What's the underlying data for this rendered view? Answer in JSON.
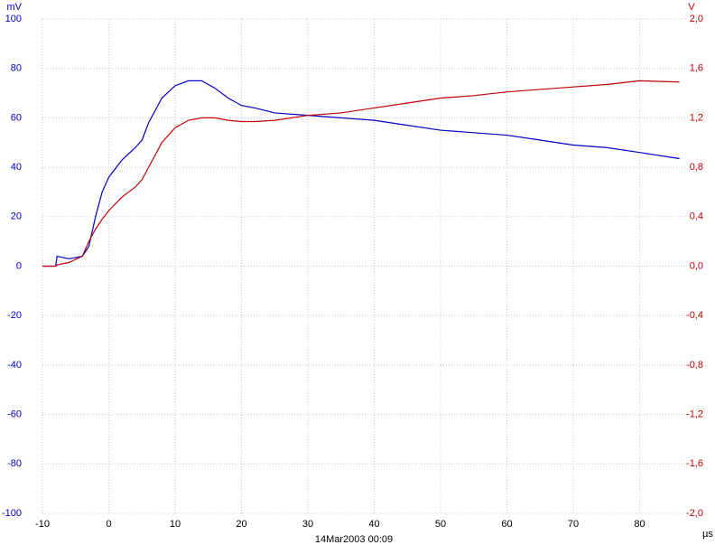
{
  "chart_data": {
    "type": "line",
    "y_label": "mV",
    "y2_label": "V",
    "x_label": "µs",
    "annotation": "14Mar2003 00:09",
    "x": [
      -10,
      -8,
      -7.8,
      -6,
      -4,
      -3,
      -2,
      -1,
      0,
      2,
      4,
      5,
      6,
      8,
      10,
      12,
      14,
      16,
      18,
      20,
      22,
      25,
      30,
      35,
      40,
      45,
      50,
      55,
      60,
      65,
      70,
      75,
      80,
      86
    ],
    "series": [
      {
        "color": "#0000c0",
        "values": [
          0,
          0,
          4,
          3,
          4,
          8,
          20,
          30,
          36,
          43,
          48,
          51,
          58,
          68,
          73,
          75,
          75,
          72,
          68,
          65,
          64,
          62,
          61,
          60,
          59,
          57,
          55,
          54,
          53,
          51,
          49,
          48,
          46,
          43.5
        ]
      },
      {
        "color": "#c00000",
        "axis": "y2",
        "values": [
          0,
          0,
          0.01,
          0.03,
          0.08,
          0.2,
          0.3,
          0.38,
          0.45,
          0.56,
          0.64,
          0.7,
          0.8,
          1.0,
          1.12,
          1.18,
          1.2,
          1.2,
          1.18,
          1.17,
          1.17,
          1.18,
          1.22,
          1.24,
          1.28,
          1.32,
          1.36,
          1.38,
          1.41,
          1.43,
          1.45,
          1.47,
          1.5,
          1.49
        ]
      }
    ],
    "xlim": [
      -10,
      87
    ],
    "xticks": [
      -10,
      0,
      10,
      20,
      30,
      40,
      50,
      60,
      70,
      80
    ],
    "ylim": [
      -100,
      100
    ],
    "yticks": [
      -100,
      -80,
      -60,
      -40,
      -20,
      0,
      20,
      40,
      60,
      80,
      100
    ],
    "y2lim": [
      -2,
      2
    ],
    "y2ticks": [
      {
        "value": -2,
        "label": "-2,0"
      },
      {
        "value": -1.6,
        "label": "-1,6"
      },
      {
        "value": -1.2,
        "label": "-1,2"
      },
      {
        "value": -0.8,
        "label": "-0,8"
      },
      {
        "value": -0.4,
        "label": "-0,4"
      },
      {
        "value": 0,
        "label": "0,0"
      },
      {
        "value": 0.4,
        "label": "0,4"
      },
      {
        "value": 0.8,
        "label": "0,8"
      },
      {
        "value": 1.2,
        "label": "1,2"
      },
      {
        "value": 1.6,
        "label": "1,6"
      },
      {
        "value": 2,
        "label": "2,0"
      }
    ],
    "y_color": "#0000c0",
    "y2_color": "#c00000",
    "grid": true
  }
}
